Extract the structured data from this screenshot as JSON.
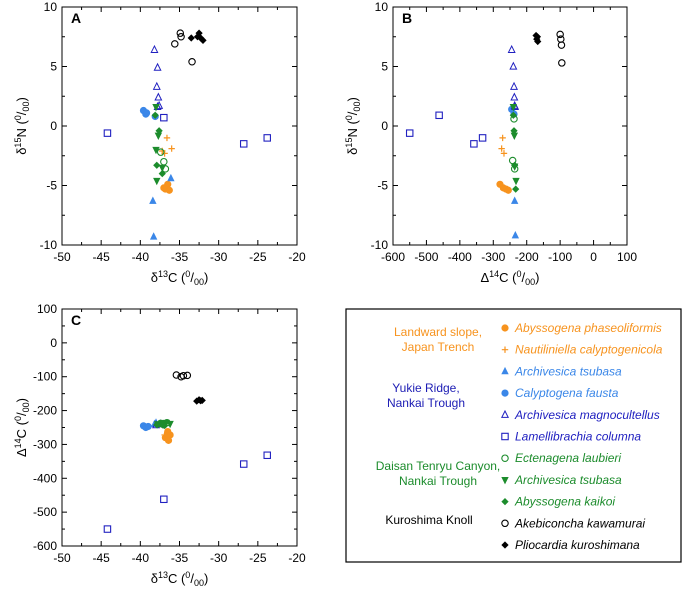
{
  "colors": {
    "orange": "#f7931e",
    "lightblue": "#3b87e8",
    "darkblue": "#2020c0",
    "green": "#1c8c2c",
    "black": "#000000",
    "grp_orange": "#f7931e",
    "grp_blue": "#1c1cb4",
    "grp_green": "#1c8c2c",
    "grp_black": "#000000"
  },
  "legend": {
    "groups": [
      {
        "lines": [
          "Landward slope,",
          "Japan Trench"
        ],
        "color": "grp_orange"
      },
      {
        "lines": [
          "Yukie Ridge,",
          "Nankai Trough"
        ],
        "color": "grp_blue"
      },
      {
        "lines": [
          "Daisan Tenryu Canyon,",
          "Nankai Trough"
        ],
        "color": "grp_green"
      },
      {
        "lines": [
          "Kuroshima Knoll"
        ],
        "color": "grp_black"
      }
    ],
    "items": [
      {
        "name": "Abyssogena phaseoliformis",
        "marker": "circle-filled",
        "color": "orange"
      },
      {
        "name": "Nautiliniella calyptogenicola",
        "marker": "plus",
        "color": "orange"
      },
      {
        "name": "Archivesica tsubasa",
        "marker": "triangle-up-filled",
        "color": "lightblue"
      },
      {
        "name": "Calyptogena fausta",
        "marker": "circle-filled",
        "color": "lightblue"
      },
      {
        "name": "Archivesica magnocultellus",
        "marker": "triangle-up-open",
        "color": "darkblue"
      },
      {
        "name": "Lamellibrachia columna",
        "marker": "square-open",
        "color": "darkblue"
      },
      {
        "name": "Ectenagena laubieri",
        "marker": "circle-open",
        "color": "green"
      },
      {
        "name": "Archivesica tsubasa",
        "marker": "triangle-down-filled",
        "color": "green"
      },
      {
        "name": "Abyssogena kaikoi",
        "marker": "diamond-filled",
        "color": "green"
      },
      {
        "name": "Akebiconcha kawamurai",
        "marker": "circle-open",
        "color": "black"
      },
      {
        "name": "Pliocardia kuroshimana",
        "marker": "diamond-filled",
        "color": "black"
      }
    ]
  },
  "chart_data": [
    {
      "panel": "A",
      "type": "scatter",
      "xlabel": "δ13C (0/00)",
      "ylabel": "δ15N (0/00)",
      "xlim": [
        -50,
        -20
      ],
      "ylim": [
        -10,
        10
      ],
      "xticks": [
        -50,
        -45,
        -40,
        -35,
        -30,
        -25,
        -20
      ],
      "yticks": [
        -10,
        -5,
        0,
        5,
        10
      ],
      "series": [
        {
          "name": "Abyssogena phaseoliformis",
          "x": [
            -36.5,
            -37.0,
            -36.8,
            -36.3
          ],
          "y": [
            -4.9,
            -5.2,
            -5.3,
            -5.4
          ]
        },
        {
          "name": "Nautiliniella calyptogenicola",
          "x": [
            -36.6,
            -36.0,
            -36.9,
            -37.2
          ],
          "y": [
            -1.0,
            -1.9,
            -2.3,
            -2.1
          ]
        },
        {
          "name": "Archivesica tsubasa (Yukie Ridge)",
          "x": [
            -38.4,
            -38.3,
            -36.1
          ],
          "y": [
            -6.3,
            -9.3,
            -4.4
          ]
        },
        {
          "name": "Calyptogena fausta",
          "x": [
            -39.6,
            -39.3,
            -39.2,
            -38.1
          ],
          "y": [
            1.3,
            1.0,
            1.1,
            0.8
          ]
        },
        {
          "name": "Archivesica magnocultellus",
          "x": [
            -38.2,
            -37.8,
            -37.9,
            -37.7,
            -37.6,
            -37.8
          ],
          "y": [
            6.4,
            4.9,
            3.3,
            2.4,
            1.7,
            1.6
          ]
        },
        {
          "name": "Lamellibrachia columna",
          "x": [
            -44.2,
            -37.0,
            -26.8,
            -23.8
          ],
          "y": [
            -0.6,
            0.7,
            -1.5,
            -1.0
          ]
        },
        {
          "name": "Ectenagena laubieri",
          "x": [
            -37.4,
            -37.0,
            -36.8
          ],
          "y": [
            -2.2,
            -3.0,
            -3.6
          ]
        },
        {
          "name": "Archivesica tsubasa (Daisan Tenryu)",
          "x": [
            -38.0,
            -37.7,
            -38.0,
            -37.2,
            -37.9
          ],
          "y": [
            1.6,
            -0.8,
            -2.0,
            -3.5,
            -4.6
          ]
        },
        {
          "name": "Abyssogena kaikoi",
          "x": [
            -38.1,
            -37.6,
            -37.9,
            -37.2
          ],
          "y": [
            0.9,
            -0.4,
            -3.3,
            -4.0
          ]
        },
        {
          "name": "Akebiconcha kawamurai",
          "x": [
            -35.6,
            -34.9,
            -34.8,
            -33.4
          ],
          "y": [
            6.9,
            7.8,
            7.5,
            5.4
          ]
        },
        {
          "name": "Pliocardia kuroshimana",
          "x": [
            -33.5,
            -32.7,
            -32.5,
            -32.3,
            -32.0
          ],
          "y": [
            7.4,
            7.5,
            7.8,
            7.4,
            7.2
          ]
        }
      ]
    },
    {
      "panel": "B",
      "type": "scatter",
      "xlabel": "Δ14C (0/00)",
      "ylabel": "δ15N (0/00)",
      "xlim": [
        -600,
        100
      ],
      "ylim": [
        -10,
        10
      ],
      "xticks": [
        -600,
        -500,
        -400,
        -300,
        -200,
        -100,
        0,
        100
      ],
      "yticks": [
        -10,
        -5,
        0,
        5,
        10
      ],
      "series": [
        {
          "name": "Abyssogena phaseoliformis",
          "x": [
            -280,
            -270,
            -262,
            -255
          ],
          "y": [
            -4.9,
            -5.2,
            -5.3,
            -5.4
          ]
        },
        {
          "name": "Nautiliniella calyptogenicola",
          "x": [
            -272,
            -275,
            -268
          ],
          "y": [
            -1.0,
            -1.9,
            -2.3
          ]
        },
        {
          "name": "Archivesica tsubasa (Yukie Ridge)",
          "x": [
            -236,
            -234
          ],
          "y": [
            -6.3,
            -9.2
          ]
        },
        {
          "name": "Calyptogena fausta",
          "x": [
            -245,
            -238
          ],
          "y": [
            1.4,
            1.0
          ]
        },
        {
          "name": "Archivesica magnocultellus",
          "x": [
            -245,
            -240,
            -238,
            -237,
            -236,
            -235
          ],
          "y": [
            6.4,
            5.0,
            3.3,
            2.4,
            1.7,
            1.6
          ]
        },
        {
          "name": "Lamellibrachia columna",
          "x": [
            -550,
            -462,
            -358,
            -332
          ],
          "y": [
            -0.6,
            0.9,
            -1.5,
            -1.0
          ]
        },
        {
          "name": "Ectenagena laubieri",
          "x": [
            -238,
            -242,
            -236
          ],
          "y": [
            0.6,
            -2.9,
            -3.6
          ]
        },
        {
          "name": "Archivesica tsubasa (Daisan Tenryu)",
          "x": [
            -240,
            -237,
            -236,
            -232
          ],
          "y": [
            1.6,
            -0.8,
            -3.4,
            -4.6
          ]
        },
        {
          "name": "Abyssogena kaikoi",
          "x": [
            -240,
            -238,
            -236,
            -233
          ],
          "y": [
            0.9,
            -0.4,
            -3.3,
            -5.3
          ]
        },
        {
          "name": "Akebiconcha kawamurai",
          "x": [
            -100,
            -98,
            -96,
            -95
          ],
          "y": [
            7.7,
            7.3,
            6.8,
            5.3
          ]
        },
        {
          "name": "Pliocardia kuroshimana",
          "x": [
            -172,
            -170,
            -168,
            -167
          ],
          "y": [
            7.6,
            7.3,
            7.5,
            7.1
          ]
        }
      ]
    },
    {
      "panel": "C",
      "type": "scatter",
      "xlabel": "δ13C (0/00)",
      "ylabel": "Δ14C (0/00)",
      "xlim": [
        -50,
        -20
      ],
      "ylim": [
        -600,
        100
      ],
      "xticks": [
        -50,
        -45,
        -40,
        -35,
        -30,
        -25,
        -20
      ],
      "yticks": [
        -600,
        -500,
        -400,
        -300,
        -200,
        -100,
        0,
        100
      ],
      "series": [
        {
          "name": "Abyssogena phaseoliformis",
          "x": [
            -36.5,
            -36.2,
            -36.8,
            -36.4
          ],
          "y": [
            -262,
            -272,
            -280,
            -288
          ]
        },
        {
          "name": "Nautiliniella calyptogenicola",
          "x": [
            -36.6,
            -36.4,
            -36.9
          ],
          "y": [
            -268,
            -275,
            -272
          ]
        },
        {
          "name": "Archivesica tsubasa (Yukie Ridge)",
          "x": [
            -38.0,
            -38.2
          ],
          "y": [
            -236,
            -240
          ]
        },
        {
          "name": "Calyptogena fausta",
          "x": [
            -39.6,
            -39.3,
            -39.0
          ],
          "y": [
            -245,
            -250,
            -247
          ]
        },
        {
          "name": "Archivesica magnocultellus",
          "x": [
            -38.0,
            -37.4
          ],
          "y": [
            -243,
            -240
          ]
        },
        {
          "name": "Lamellibrachia columna",
          "x": [
            -44.2,
            -37.0,
            -26.8,
            -23.8
          ],
          "y": [
            -550,
            -462,
            -358,
            -332
          ]
        },
        {
          "name": "Ectenagena laubieri",
          "x": [
            -37.4,
            -37.0,
            -36.6
          ],
          "y": [
            -238,
            -242,
            -236
          ]
        },
        {
          "name": "Archivesica tsubasa (Daisan Tenryu)",
          "x": [
            -37.8,
            -37.2,
            -36.7,
            -36.2
          ],
          "y": [
            -240,
            -237,
            -236,
            -239
          ]
        },
        {
          "name": "Abyssogena kaikoi",
          "x": [
            -37.6,
            -37.9,
            -37.1,
            -36.9
          ],
          "y": [
            -240,
            -242,
            -238,
            -244
          ]
        },
        {
          "name": "Akebiconcha kawamurai",
          "x": [
            -35.4,
            -34.8,
            -34.5,
            -34.0
          ],
          "y": [
            -95,
            -100,
            -97,
            -96
          ]
        },
        {
          "name": "Pliocardia kuroshimana",
          "x": [
            -32.8,
            -32.5,
            -32.3,
            -32.1
          ],
          "y": [
            -172,
            -168,
            -171,
            -170
          ]
        }
      ]
    }
  ]
}
